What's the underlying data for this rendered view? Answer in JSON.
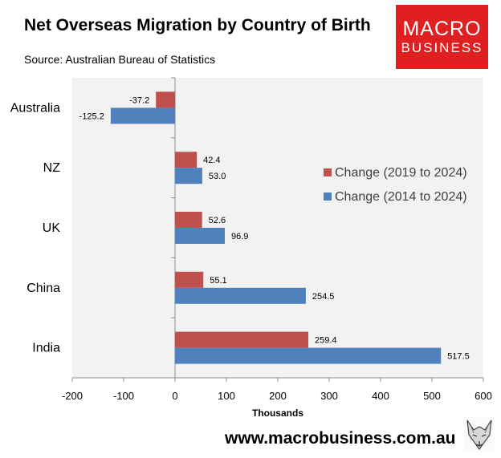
{
  "header": {
    "title": "Net Overseas Migration by Country of Birth",
    "subtitle": "Source: Australian Bureau of Statistics",
    "logo_line1": "MACRO",
    "logo_line2": "BUSINESS"
  },
  "footer": {
    "url": "www.macrobusiness.com.au",
    "mascot_icon": "fox-sketch-icon"
  },
  "chart_data": {
    "type": "bar",
    "orientation": "horizontal",
    "title": "Net Overseas Migration by Country of Birth",
    "subtitle": "Source: Australian Bureau of Statistics",
    "xlabel": "Thousands",
    "ylabel": "",
    "xlim": [
      -200,
      600
    ],
    "x_ticks": [
      -200,
      -100,
      0,
      100,
      200,
      300,
      400,
      500,
      600
    ],
    "categories": [
      "Australia",
      "NZ",
      "UK",
      "China",
      "India"
    ],
    "series": [
      {
        "name": "Change (2019 to 2024)",
        "color": "#c0504d",
        "values": [
          -37.2,
          42.4,
          52.6,
          55.1,
          259.4
        ],
        "labels": [
          "-37.2",
          "42.4",
          "52.6",
          "55.1",
          "259.4"
        ]
      },
      {
        "name": "Change (2014 to 2024)",
        "color": "#4f81bd",
        "values": [
          -125.2,
          53.0,
          96.9,
          254.5,
          517.5
        ],
        "labels": [
          "-125.2",
          "53.0",
          "96.9",
          "254.5",
          "517.5"
        ]
      }
    ],
    "legend_position": "right",
    "grid": false,
    "plot_background": "#f2f2f2"
  }
}
